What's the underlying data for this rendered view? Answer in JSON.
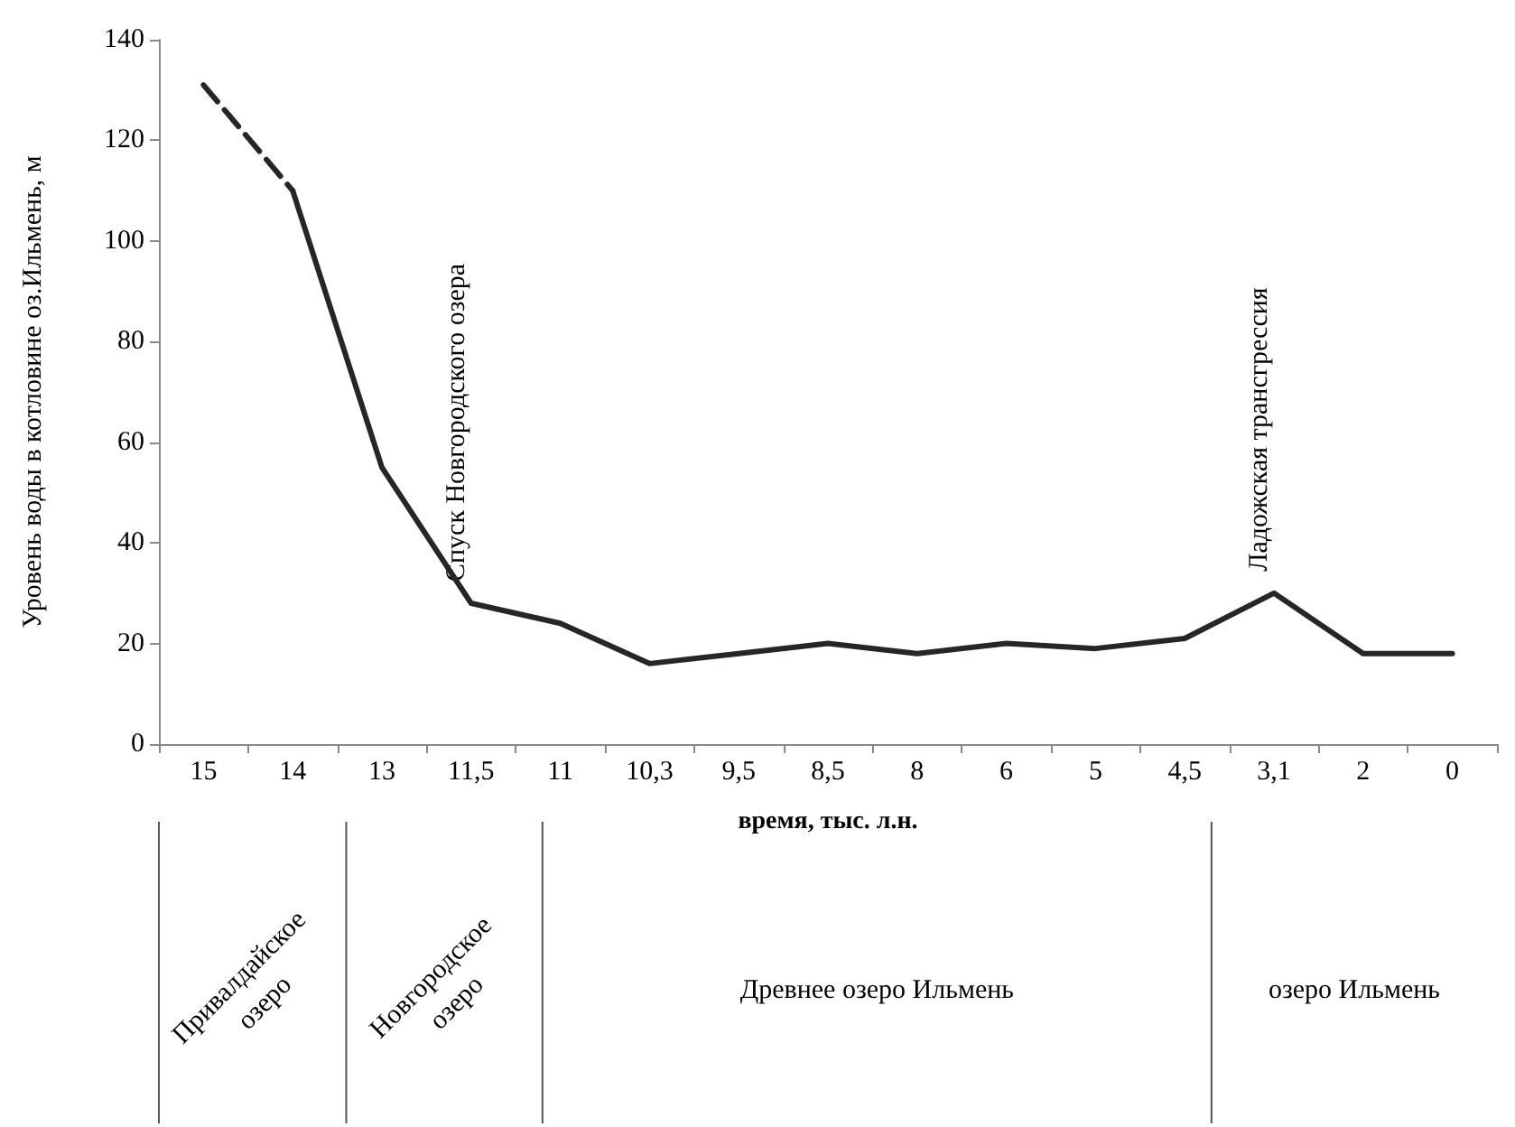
{
  "chart_data": {
    "type": "line",
    "ylabel": "Уровень воды в котловине оз.Ильмень, м",
    "xlabel": "время, тыс. л.н.",
    "categories": [
      "15",
      "14",
      "13",
      "11,5",
      "11",
      "10,3",
      "9,5",
      "8,5",
      "8",
      "6",
      "5",
      "4,5",
      "3,1",
      "2",
      "0"
    ],
    "series": [
      {
        "color": "#262626",
        "line_style": "dashed",
        "values": [
          131,
          110,
          null,
          null,
          null,
          null,
          null,
          null,
          null,
          null,
          null,
          null,
          null,
          null,
          null
        ]
      },
      {
        "color": "#262626",
        "line_style": "solid",
        "values": [
          null,
          110,
          55,
          28,
          24,
          16,
          18,
          20,
          18,
          20,
          19,
          21,
          30,
          18,
          18
        ]
      }
    ],
    "ylim": [
      0,
      140
    ],
    "yticks": [
      0,
      20,
      40,
      60,
      80,
      100,
      120,
      140
    ],
    "grid": false,
    "marker": "none",
    "annotations": [
      {
        "text": "Спуск Новгородского озера",
        "x": "11,5",
        "y": 28
      },
      {
        "text": "Ладожская трансгрессия",
        "x": "3,1",
        "y": 30
      },
      "Привалдайское озеро",
      "Новгородское озеро",
      "Древнее озеро Ильмень",
      "озеро Ильмень"
    ]
  }
}
